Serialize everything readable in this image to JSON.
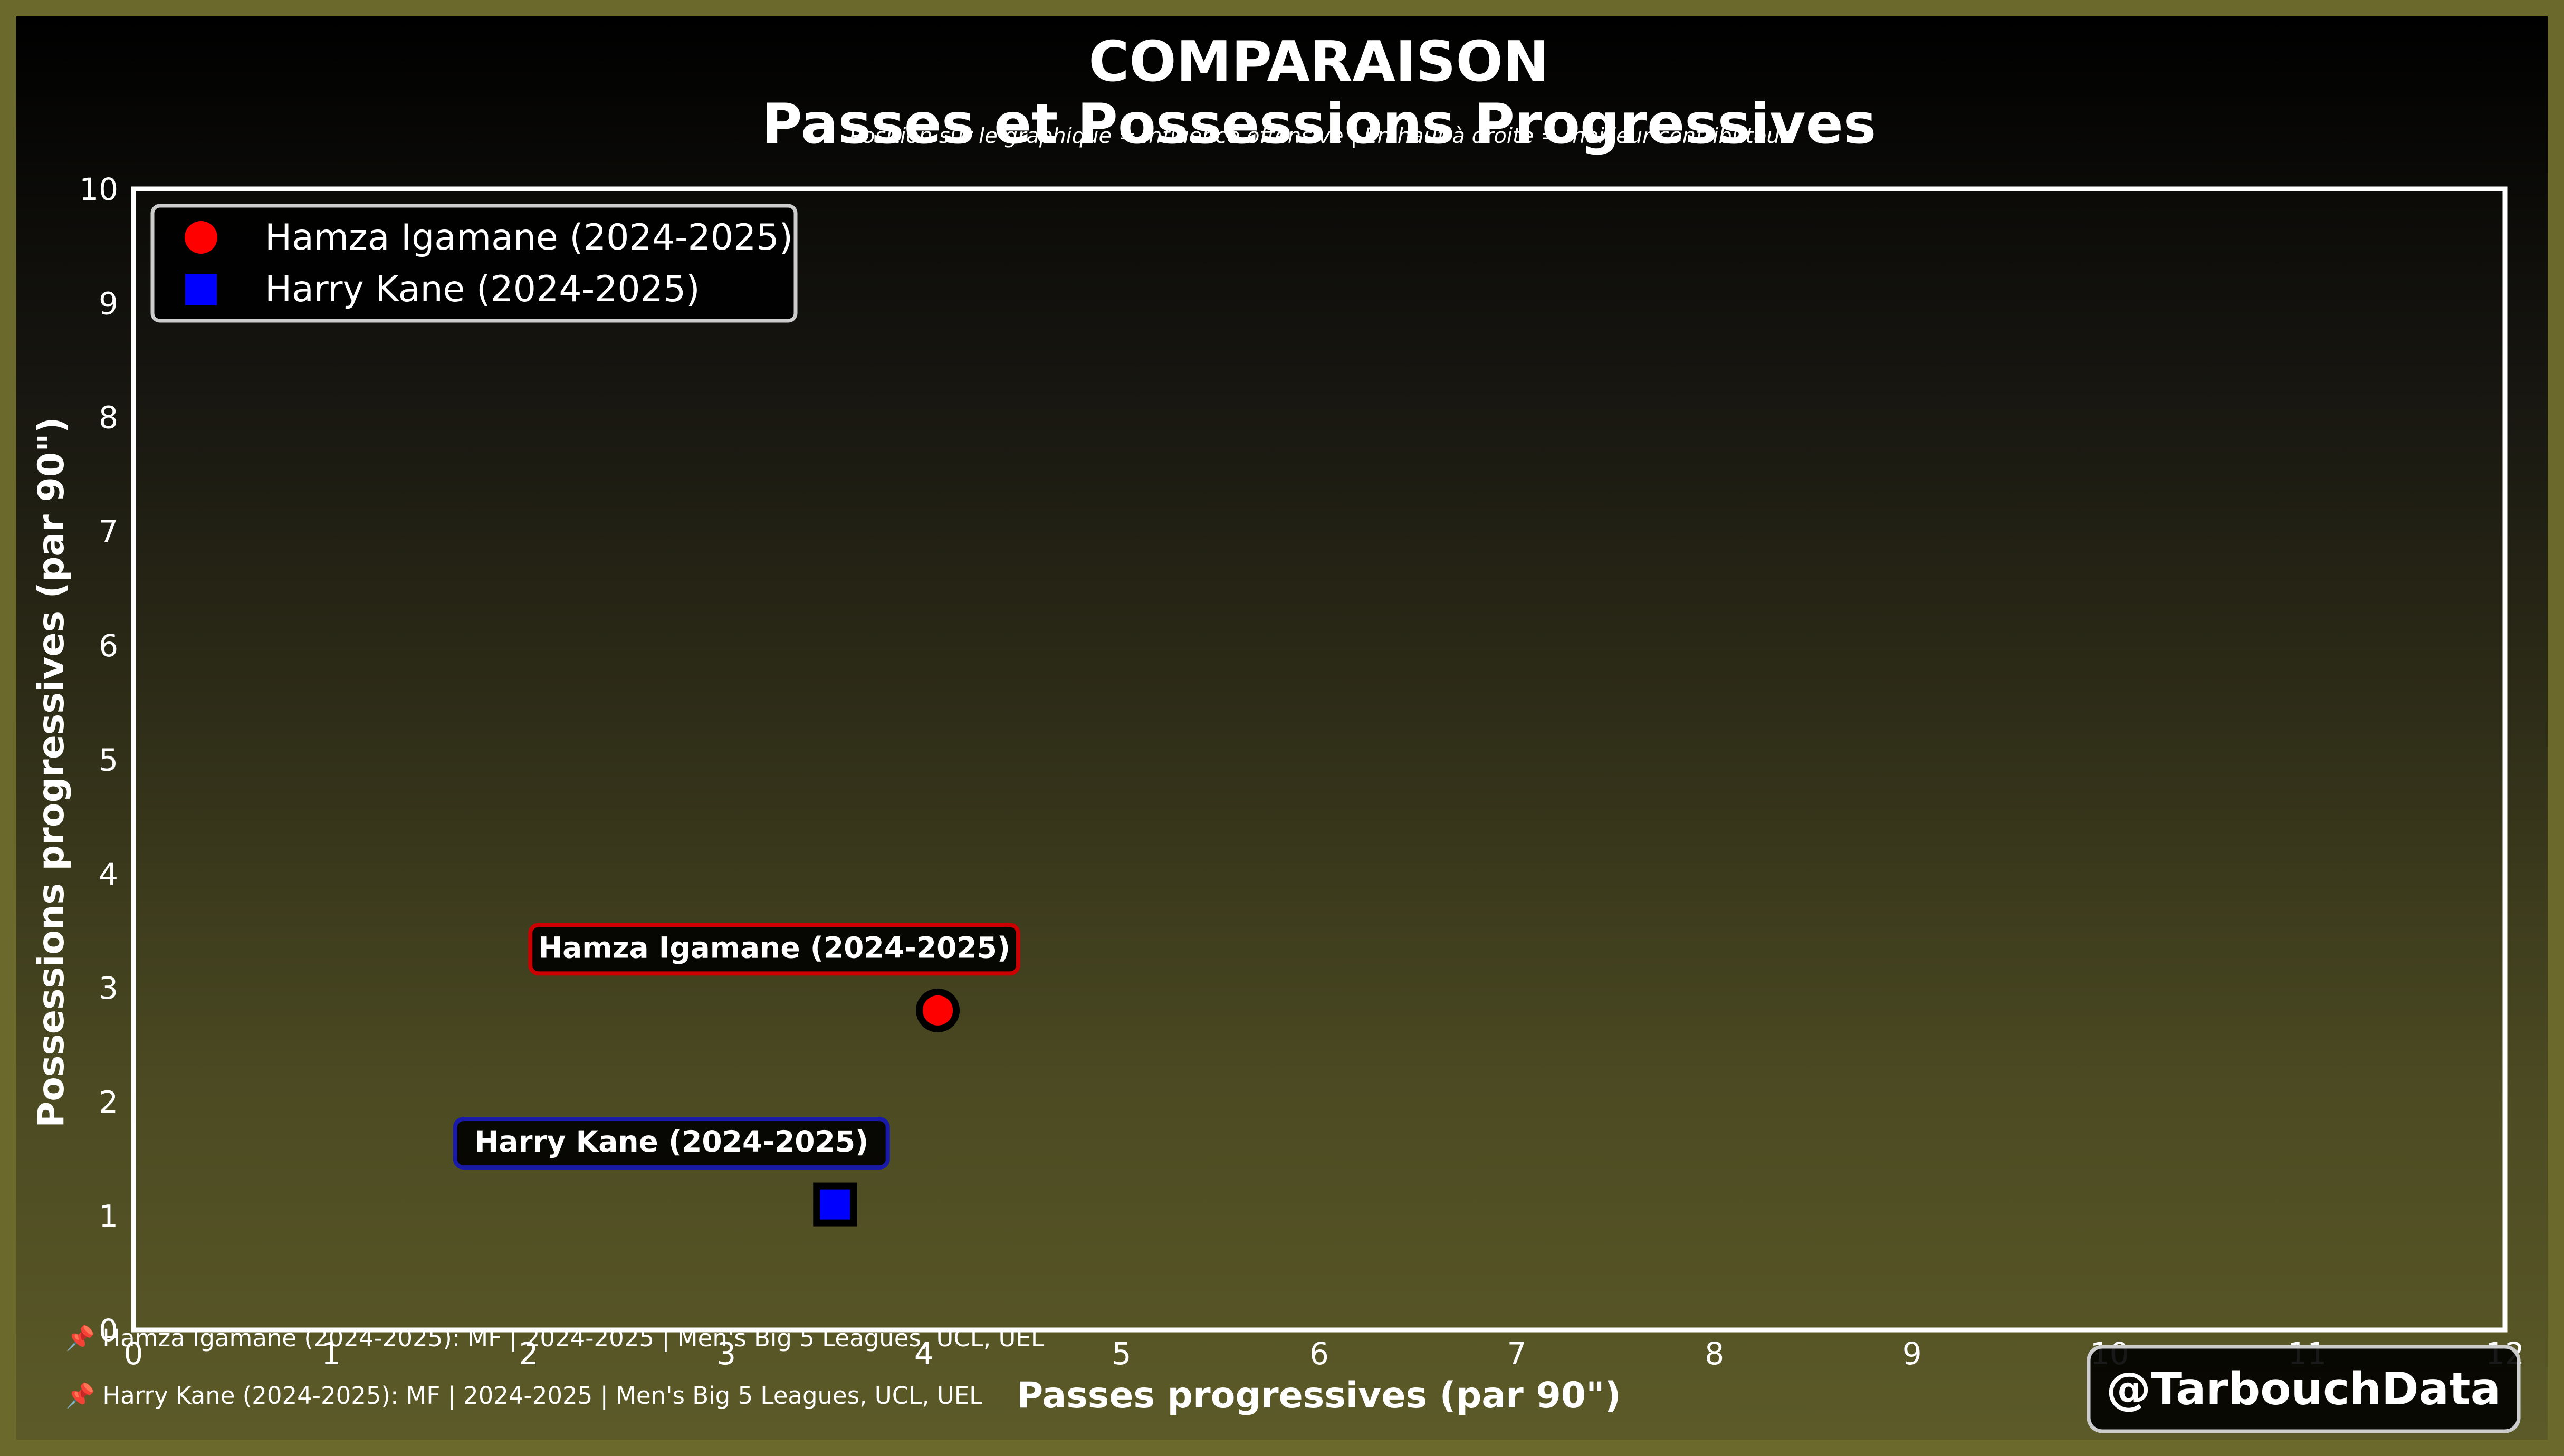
{
  "chart_data": {
    "type": "scatter",
    "title": "COMPARAISON",
    "subtitle": "Passes et Possessions Progressives",
    "caption": "Position sur le graphique = influence offensive | En haut à droite = meilleur contributeur",
    "xlabel": "Passes progressives (par 90\")",
    "ylabel": "Possessions progressives (par 90\")",
    "xlim": [
      0,
      12
    ],
    "ylim": [
      0,
      10
    ],
    "xticks": [
      0,
      1,
      2,
      3,
      4,
      5,
      6,
      7,
      8,
      9,
      10,
      11,
      12
    ],
    "yticks": [
      0,
      1,
      2,
      3,
      4,
      5,
      6,
      7,
      8,
      9,
      10
    ],
    "grid": false,
    "legend_position": "top-left",
    "series": [
      {
        "name": "Hamza Igamane (2024-2025)",
        "marker": "circle",
        "color": "#ff0000",
        "border": "#cc0000",
        "x": 4.07,
        "y": 2.8
      },
      {
        "name": "Harry Kane (2024-2025)",
        "marker": "square",
        "color": "#0000ff",
        "border": "#1a1aaa",
        "x": 3.55,
        "y": 1.1
      }
    ]
  },
  "footnotes": [
    "📌 Hamza Igamane (2024-2025): MF | 2024-2025 | Men's Big 5 Leagues, UCL, UEL",
    "📌 Harry Kane (2024-2025): MF | 2024-2025 | Men's Big 5 Leagues, UCL, UEL"
  ],
  "brand": "@TarbouchData",
  "colors": {
    "frame": "#6b6a2c",
    "plot_border": "#ffffff",
    "text": "#ffffff"
  }
}
